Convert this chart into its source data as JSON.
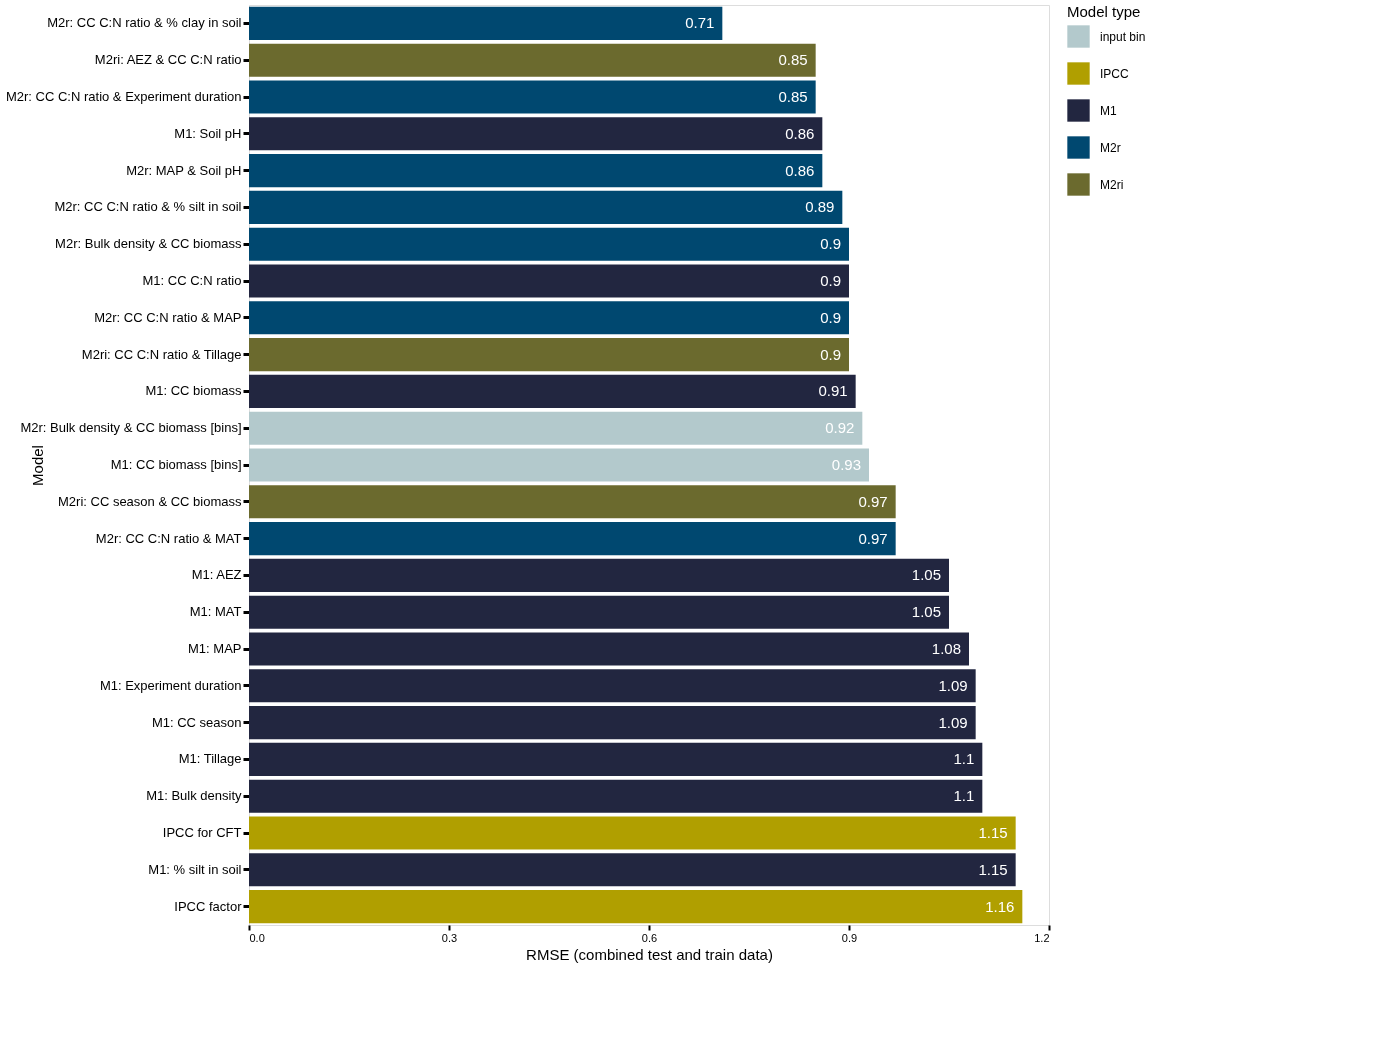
{
  "chart_data": {
    "type": "bar",
    "orientation": "horizontal",
    "xlabel": "RMSE (combined test and train data)",
    "ylabel": "Model",
    "legend_title": "Model type",
    "legend": "right",
    "data_labels": true,
    "grid": false,
    "categories": [
      "M2r: CC C:N ratio & % clay in soil",
      "M2ri: AEZ & CC C:N ratio",
      "M2r: CC C:N ratio & Experiment duration",
      "M1: Soil pH",
      "M2r: MAP & Soil pH",
      "M2r: CC C:N ratio & % silt in soil",
      "M2r: Bulk density & CC biomass",
      "M1: CC C:N ratio",
      "M2r: CC C:N ratio & MAP",
      "M2ri: CC C:N ratio & Tillage",
      "M1: CC biomass",
      "M2r: Bulk density & CC biomass [bins]",
      "M1: CC biomass [bins]",
      "M2ri: CC season & CC biomass",
      "M2r: CC C:N ratio & MAT",
      "M1: AEZ",
      "M1: MAT",
      "M1: MAP",
      "M1: Experiment duration",
      "M1: CC season",
      "M1: Tillage",
      "M1: Bulk density",
      "IPCC for CFT",
      "M1: % silt in soil",
      "IPCC factor"
    ],
    "xlim": [
      0,
      1.2
    ],
    "xticks": [
      {
        "value": 0,
        "label": "0.0"
      },
      0.3,
      0.6,
      0.9,
      1.2
    ],
    "series": [
      {
        "name": "input bin",
        "color": "#b3c9cc",
        "values": [
          null,
          null,
          null,
          null,
          null,
          null,
          null,
          null,
          null,
          null,
          null,
          0.92,
          0.93,
          null,
          null,
          null,
          null,
          null,
          null,
          null,
          null,
          null,
          null,
          null,
          null
        ]
      },
      {
        "name": "IPCC",
        "color": "#b09f00",
        "values": [
          null,
          null,
          null,
          null,
          null,
          null,
          null,
          null,
          null,
          null,
          null,
          null,
          null,
          null,
          null,
          null,
          null,
          null,
          null,
          null,
          null,
          null,
          1.15,
          null,
          1.16
        ]
      },
      {
        "name": "M1",
        "color": "#222640",
        "values": [
          null,
          null,
          null,
          0.86,
          null,
          null,
          null,
          0.9,
          null,
          null,
          0.91,
          null,
          null,
          null,
          null,
          1.05,
          1.05,
          1.08,
          1.09,
          1.09,
          1.1,
          1.1,
          null,
          1.15,
          null
        ]
      },
      {
        "name": "M2r",
        "color": "#004870",
        "values": [
          0.71,
          null,
          0.85,
          null,
          0.86,
          0.89,
          0.9,
          null,
          0.9,
          null,
          null,
          null,
          null,
          null,
          0.97,
          null,
          null,
          null,
          null,
          null,
          null,
          null,
          null,
          null,
          null
        ]
      },
      {
        "name": "M2ri",
        "color": "#6b6a2e",
        "values": [
          null,
          0.85,
          null,
          null,
          null,
          null,
          null,
          null,
          null,
          0.9,
          null,
          null,
          null,
          0.97,
          null,
          null,
          null,
          null,
          null,
          null,
          null,
          null,
          null,
          null,
          null
        ]
      }
    ]
  }
}
